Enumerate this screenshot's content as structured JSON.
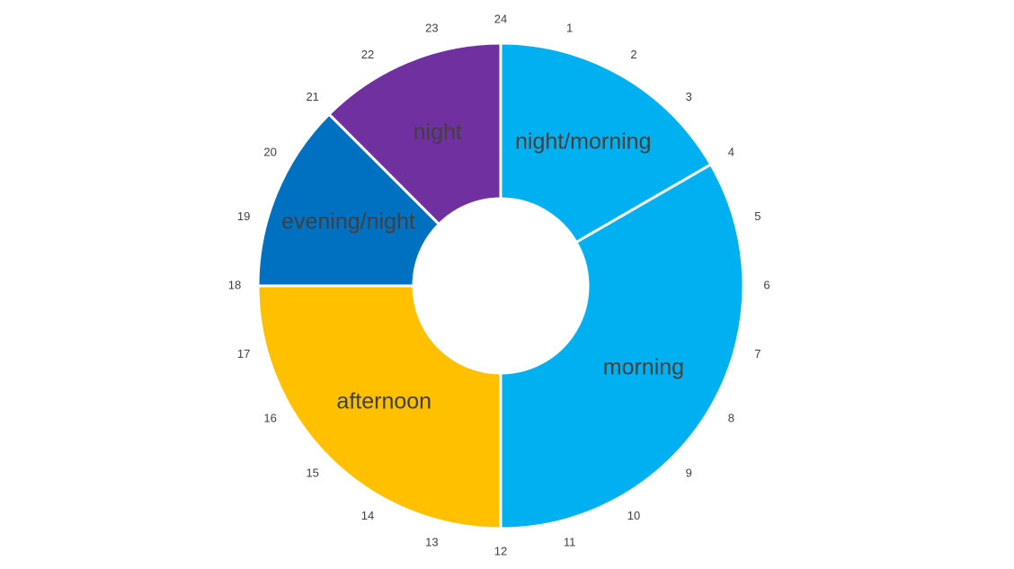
{
  "chart_data": {
    "type": "pie",
    "variant": "doughnut",
    "title": "",
    "segments": [
      {
        "label": "night/morning",
        "start_hour": 0,
        "end_hour": 4,
        "value": 4,
        "color": "#00B0F0"
      },
      {
        "label": "morning",
        "start_hour": 4,
        "end_hour": 12,
        "value": 8,
        "color": "#00B0F0"
      },
      {
        "label": "afternoon",
        "start_hour": 12,
        "end_hour": 18,
        "value": 6,
        "color": "#FFC000"
      },
      {
        "label": "evening/night",
        "start_hour": 18,
        "end_hour": 21,
        "value": 3,
        "color": "#0070C0"
      },
      {
        "label": "night",
        "start_hour": 21,
        "end_hour": 24,
        "value": 3,
        "color": "#7030A0"
      }
    ],
    "hour_labels": [
      "24",
      "1",
      "2",
      "3",
      "4",
      "5",
      "6",
      "7",
      "8",
      "9",
      "10",
      "11",
      "12",
      "13",
      "14",
      "15",
      "16",
      "17",
      "18",
      "19",
      "20",
      "21",
      "22",
      "23"
    ],
    "total_hours": 24,
    "label_color": "#404040",
    "legend": "none"
  }
}
